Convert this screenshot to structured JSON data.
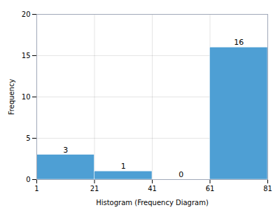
{
  "chart_data": {
    "type": "histogram",
    "bins": [
      1,
      21,
      41,
      61,
      81
    ],
    "values": [
      3,
      1,
      0,
      16
    ],
    "color": "#4e9fd4",
    "xlabel": "Histogram (Frequency Diagram)",
    "ylabel": "Frequency",
    "xlim": [
      1,
      81
    ],
    "xticks": [
      1,
      21,
      41,
      61,
      81
    ],
    "ylim": [
      0,
      20
    ],
    "yticks": [
      0,
      5,
      10,
      15,
      20
    ],
    "grid": true,
    "data_labels": true
  }
}
